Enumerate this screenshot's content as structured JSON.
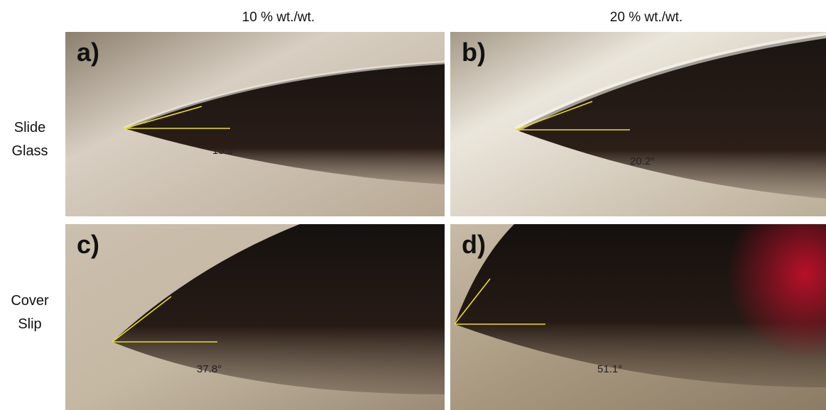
{
  "column_headers": [
    "10 % wt./wt.",
    "20 % wt./wt."
  ],
  "row_labels": [
    "Slide Glass",
    "Cover Slip"
  ],
  "panels": [
    {
      "label": "a)",
      "angle": "15.8°"
    },
    {
      "label": "b)",
      "angle": "20.2°"
    },
    {
      "label": "c)",
      "angle": "37.8°"
    },
    {
      "label": "d)",
      "angle": "51.1°"
    }
  ]
}
